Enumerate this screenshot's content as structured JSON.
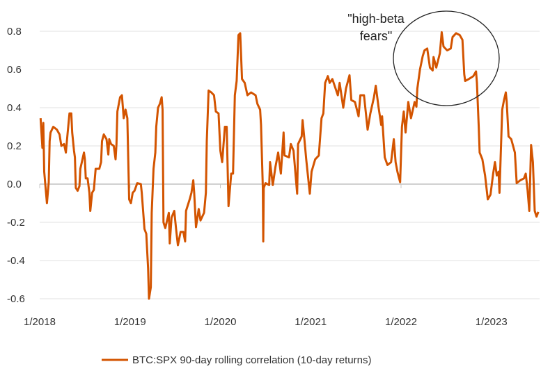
{
  "chart_data": {
    "type": "line",
    "title": "",
    "xlabel": "",
    "ylabel": "",
    "ylim": [
      -0.6,
      0.8
    ],
    "xlim": [
      2018.0,
      2023.55
    ],
    "grid": true,
    "legend_position": "bottom",
    "y_ticks": [
      {
        "value": 0.8,
        "label": "0.8"
      },
      {
        "value": 0.6,
        "label": "0.6"
      },
      {
        "value": 0.4,
        "label": "0.4"
      },
      {
        "value": 0.2,
        "label": "0.2"
      },
      {
        "value": 0.0,
        "label": "0.0"
      },
      {
        "value": -0.2,
        "label": "-0.2"
      },
      {
        "value": -0.4,
        "label": "-0.4"
      },
      {
        "value": -0.6,
        "label": "-0.6"
      }
    ],
    "x_ticks": [
      {
        "value": 2018,
        "label": "1/2018"
      },
      {
        "value": 2019,
        "label": "1/2019"
      },
      {
        "value": 2020,
        "label": "1/2020"
      },
      {
        "value": 2021,
        "label": "1/2021"
      },
      {
        "value": 2022,
        "label": "1/2022"
      },
      {
        "value": 2023,
        "label": "1/2023"
      }
    ],
    "annotation": {
      "line1": "\"high-beta",
      "line2": "fears\"",
      "circled_period": [
        2022.23,
        2022.9
      ]
    },
    "series": [
      {
        "name": "BTC:SPX 90-day rolling correlation (10-day returns)",
        "color": "#d35400",
        "points": [
          [
            2018.01,
            0.345
          ],
          [
            2018.03,
            0.19
          ],
          [
            2018.04,
            0.32
          ],
          [
            2018.05,
            0.065
          ],
          [
            2018.07,
            -0.045
          ],
          [
            2018.08,
            -0.1
          ],
          [
            2018.1,
            0.01
          ],
          [
            2018.11,
            0.225
          ],
          [
            2018.12,
            0.27
          ],
          [
            2018.15,
            0.3
          ],
          [
            2018.19,
            0.285
          ],
          [
            2018.22,
            0.26
          ],
          [
            2018.24,
            0.2
          ],
          [
            2018.27,
            0.21
          ],
          [
            2018.29,
            0.165
          ],
          [
            2018.31,
            0.27
          ],
          [
            2018.33,
            0.37
          ],
          [
            2018.35,
            0.37
          ],
          [
            2018.36,
            0.27
          ],
          [
            2018.38,
            0.175
          ],
          [
            2018.39,
            0.14
          ],
          [
            2018.4,
            -0.02
          ],
          [
            2018.42,
            -0.035
          ],
          [
            2018.44,
            -0.01
          ],
          [
            2018.45,
            0.08
          ],
          [
            2018.49,
            0.165
          ],
          [
            2018.5,
            0.13
          ],
          [
            2018.51,
            0.03
          ],
          [
            2018.53,
            0.03
          ],
          [
            2018.55,
            -0.045
          ],
          [
            2018.56,
            -0.14
          ],
          [
            2018.58,
            -0.045
          ],
          [
            2018.6,
            -0.03
          ],
          [
            2018.62,
            0.08
          ],
          [
            2018.66,
            0.08
          ],
          [
            2018.68,
            0.115
          ],
          [
            2018.69,
            0.225
          ],
          [
            2018.71,
            0.26
          ],
          [
            2018.74,
            0.235
          ],
          [
            2018.76,
            0.155
          ],
          [
            2018.77,
            0.235
          ],
          [
            2018.79,
            0.21
          ],
          [
            2018.82,
            0.2
          ],
          [
            2018.84,
            0.13
          ],
          [
            2018.85,
            0.21
          ],
          [
            2018.86,
            0.38
          ],
          [
            2018.89,
            0.455
          ],
          [
            2018.91,
            0.465
          ],
          [
            2018.93,
            0.345
          ],
          [
            2018.95,
            0.39
          ],
          [
            2018.97,
            0.345
          ],
          [
            2018.98,
            0.13
          ],
          [
            2018.99,
            -0.08
          ],
          [
            2019.01,
            -0.1
          ],
          [
            2019.03,
            -0.045
          ],
          [
            2019.05,
            -0.035
          ],
          [
            2019.08,
            0.005
          ],
          [
            2019.12,
            0.0
          ],
          [
            2019.13,
            -0.045
          ],
          [
            2019.16,
            -0.235
          ],
          [
            2019.18,
            -0.26
          ],
          [
            2019.2,
            -0.44
          ],
          [
            2019.21,
            -0.6
          ],
          [
            2019.23,
            -0.54
          ],
          [
            2019.24,
            -0.15
          ],
          [
            2019.26,
            0.08
          ],
          [
            2019.28,
            0.165
          ],
          [
            2019.29,
            0.3
          ],
          [
            2019.31,
            0.4
          ],
          [
            2019.33,
            0.42
          ],
          [
            2019.35,
            0.455
          ],
          [
            2019.36,
            0.39
          ],
          [
            2019.37,
            -0.2
          ],
          [
            2019.39,
            -0.23
          ],
          [
            2019.43,
            -0.15
          ],
          [
            2019.44,
            -0.31
          ],
          [
            2019.46,
            -0.175
          ],
          [
            2019.49,
            -0.14
          ],
          [
            2019.51,
            -0.235
          ],
          [
            2019.53,
            -0.32
          ],
          [
            2019.56,
            -0.25
          ],
          [
            2019.59,
            -0.25
          ],
          [
            2019.61,
            -0.3
          ],
          [
            2019.62,
            -0.14
          ],
          [
            2019.66,
            -0.08
          ],
          [
            2019.68,
            -0.045
          ],
          [
            2019.7,
            0.02
          ],
          [
            2019.71,
            -0.045
          ],
          [
            2019.73,
            -0.225
          ],
          [
            2019.76,
            -0.13
          ],
          [
            2019.78,
            -0.19
          ],
          [
            2019.82,
            -0.15
          ],
          [
            2019.84,
            -0.045
          ],
          [
            2019.85,
            0.225
          ],
          [
            2019.87,
            0.49
          ],
          [
            2019.9,
            0.48
          ],
          [
            2019.93,
            0.465
          ],
          [
            2019.95,
            0.38
          ],
          [
            2019.98,
            0.37
          ],
          [
            2020.0,
            0.175
          ],
          [
            2020.02,
            0.115
          ],
          [
            2020.05,
            0.3
          ],
          [
            2020.07,
            0.3
          ],
          [
            2020.09,
            -0.115
          ],
          [
            2020.12,
            0.055
          ],
          [
            2020.14,
            0.055
          ],
          [
            2020.16,
            0.465
          ],
          [
            2020.18,
            0.54
          ],
          [
            2020.2,
            0.78
          ],
          [
            2020.22,
            0.79
          ],
          [
            2020.24,
            0.55
          ],
          [
            2020.27,
            0.53
          ],
          [
            2020.3,
            0.465
          ],
          [
            2020.34,
            0.48
          ],
          [
            2020.39,
            0.465
          ],
          [
            2020.41,
            0.42
          ],
          [
            2020.44,
            0.39
          ],
          [
            2020.45,
            0.31
          ],
          [
            2020.47,
            -0.02
          ],
          [
            2020.475,
            -0.3
          ],
          [
            2020.48,
            -0.02
          ],
          [
            2020.5,
            0.005
          ],
          [
            2020.54,
            -0.005
          ],
          [
            2020.55,
            0.115
          ],
          [
            2020.58,
            -0.005
          ],
          [
            2020.61,
            0.09
          ],
          [
            2020.64,
            0.165
          ],
          [
            2020.67,
            0.055
          ],
          [
            2020.7,
            0.27
          ],
          [
            2020.71,
            0.15
          ],
          [
            2020.76,
            0.14
          ],
          [
            2020.78,
            0.21
          ],
          [
            2020.81,
            0.175
          ],
          [
            2020.85,
            -0.05
          ],
          [
            2020.86,
            0.21
          ],
          [
            2020.9,
            0.25
          ],
          [
            2020.91,
            0.335
          ],
          [
            2020.93,
            0.235
          ],
          [
            2020.95,
            0.13
          ],
          [
            2020.99,
            -0.05
          ],
          [
            2021.01,
            0.065
          ],
          [
            2021.05,
            0.13
          ],
          [
            2021.09,
            0.15
          ],
          [
            2021.12,
            0.345
          ],
          [
            2021.14,
            0.37
          ],
          [
            2021.16,
            0.53
          ],
          [
            2021.19,
            0.565
          ],
          [
            2021.21,
            0.53
          ],
          [
            2021.24,
            0.55
          ],
          [
            2021.3,
            0.465
          ],
          [
            2021.32,
            0.53
          ],
          [
            2021.36,
            0.4
          ],
          [
            2021.39,
            0.5
          ],
          [
            2021.43,
            0.57
          ],
          [
            2021.45,
            0.44
          ],
          [
            2021.49,
            0.43
          ],
          [
            2021.53,
            0.355
          ],
          [
            2021.55,
            0.465
          ],
          [
            2021.59,
            0.465
          ],
          [
            2021.63,
            0.285
          ],
          [
            2021.66,
            0.37
          ],
          [
            2021.7,
            0.455
          ],
          [
            2021.72,
            0.515
          ],
          [
            2021.75,
            0.405
          ],
          [
            2021.78,
            0.31
          ],
          [
            2021.79,
            0.355
          ],
          [
            2021.82,
            0.14
          ],
          [
            2021.85,
            0.1
          ],
          [
            2021.89,
            0.115
          ],
          [
            2021.92,
            0.235
          ],
          [
            2021.94,
            0.115
          ],
          [
            2021.96,
            0.065
          ],
          [
            2021.99,
            0.01
          ],
          [
            2022.01,
            0.3
          ],
          [
            2022.03,
            0.38
          ],
          [
            2022.05,
            0.27
          ],
          [
            2022.08,
            0.43
          ],
          [
            2022.11,
            0.345
          ],
          [
            2022.15,
            0.43
          ],
          [
            2022.17,
            0.405
          ],
          [
            2022.18,
            0.5
          ],
          [
            2022.21,
            0.6
          ],
          [
            2022.24,
            0.67
          ],
          [
            2022.26,
            0.7
          ],
          [
            2022.29,
            0.71
          ],
          [
            2022.32,
            0.61
          ],
          [
            2022.35,
            0.595
          ],
          [
            2022.36,
            0.665
          ],
          [
            2022.39,
            0.61
          ],
          [
            2022.43,
            0.685
          ],
          [
            2022.45,
            0.795
          ],
          [
            2022.47,
            0.72
          ],
          [
            2022.51,
            0.7
          ],
          [
            2022.55,
            0.71
          ],
          [
            2022.57,
            0.77
          ],
          [
            2022.61,
            0.79
          ],
          [
            2022.65,
            0.78
          ],
          [
            2022.68,
            0.755
          ],
          [
            2022.7,
            0.575
          ],
          [
            2022.71,
            0.54
          ],
          [
            2022.75,
            0.55
          ],
          [
            2022.8,
            0.565
          ],
          [
            2022.83,
            0.59
          ],
          [
            2022.84,
            0.53
          ],
          [
            2022.86,
            0.3
          ],
          [
            2022.87,
            0.165
          ],
          [
            2022.9,
            0.13
          ],
          [
            2022.93,
            0.045
          ],
          [
            2022.96,
            -0.08
          ],
          [
            2022.99,
            -0.055
          ],
          [
            2023.02,
            0.055
          ],
          [
            2023.04,
            0.115
          ],
          [
            2023.06,
            0.045
          ],
          [
            2023.08,
            0.065
          ],
          [
            2023.09,
            -0.045
          ],
          [
            2023.12,
            0.39
          ],
          [
            2023.14,
            0.44
          ],
          [
            2023.16,
            0.48
          ],
          [
            2023.17,
            0.43
          ],
          [
            2023.19,
            0.25
          ],
          [
            2023.22,
            0.235
          ],
          [
            2023.26,
            0.165
          ],
          [
            2023.28,
            0.005
          ],
          [
            2023.32,
            0.02
          ],
          [
            2023.36,
            0.03
          ],
          [
            2023.38,
            0.055
          ],
          [
            2023.4,
            -0.03
          ],
          [
            2023.42,
            -0.14
          ],
          [
            2023.44,
            0.205
          ],
          [
            2023.46,
            0.115
          ],
          [
            2023.48,
            -0.14
          ],
          [
            2023.5,
            -0.17
          ],
          [
            2023.52,
            -0.145
          ]
        ]
      }
    ]
  }
}
